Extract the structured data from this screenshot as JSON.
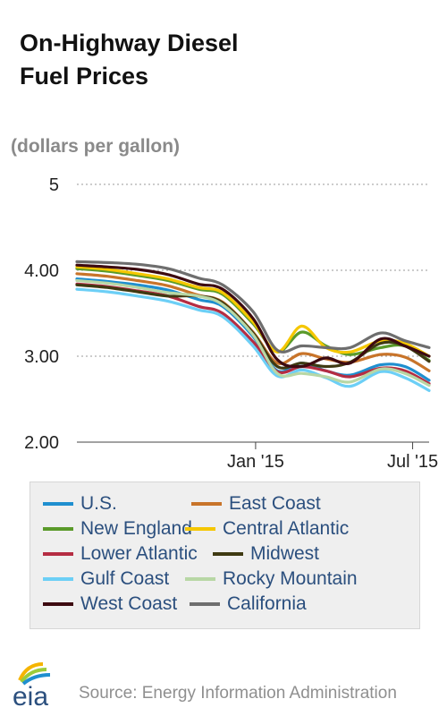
{
  "title_lines": [
    "On-Highway Diesel",
    "Fuel Prices"
  ],
  "source": "Source: Energy Information Administration",
  "logo_text": "eia",
  "chart_data": {
    "type": "line",
    "title": "On-Highway Diesel Fuel Prices",
    "ylabel": "(dollars per gallon)",
    "ylim": [
      2.0,
      5.0
    ],
    "yticks": [
      2.0,
      3.0,
      4.0,
      5.0
    ],
    "ytick_labels": [
      "2.00",
      "3.00",
      "4.00",
      "5"
    ],
    "x": [
      "2014-06-09",
      "2014-07-14",
      "2014-08-18",
      "2014-09-22",
      "2014-10-27",
      "2014-11-24",
      "2014-12-29",
      "2015-01-26",
      "2015-02-23",
      "2015-03-23",
      "2015-04-20",
      "2015-05-25",
      "2015-06-22",
      "2015-07-20"
    ],
    "xticks": [
      "2015-01-01",
      "2015-07-01"
    ],
    "xtick_labels": [
      "Jan '15",
      "Jul '15"
    ],
    "grid": "horizontal",
    "legend_position": "bottom",
    "series": [
      {
        "name": "U.S.",
        "color": "#1f8fcf",
        "values": [
          3.9,
          3.87,
          3.83,
          3.77,
          3.66,
          3.58,
          3.23,
          2.83,
          2.92,
          2.83,
          2.78,
          2.9,
          2.88,
          2.72
        ]
      },
      {
        "name": "East Coast",
        "color": "#c8742a",
        "values": [
          3.96,
          3.93,
          3.88,
          3.82,
          3.71,
          3.63,
          3.28,
          2.92,
          3.03,
          2.97,
          2.93,
          3.02,
          2.99,
          2.83
        ]
      },
      {
        "name": "New England",
        "color": "#5a9a2a",
        "values": [
          4.02,
          3.99,
          3.94,
          3.88,
          3.78,
          3.72,
          3.38,
          3.05,
          3.28,
          3.12,
          3.02,
          3.1,
          3.12,
          2.95
        ]
      },
      {
        "name": "Central Atlantic",
        "color": "#f5c700",
        "values": [
          4.04,
          4.01,
          3.96,
          3.9,
          3.8,
          3.74,
          3.4,
          3.05,
          3.35,
          3.1,
          3.05,
          3.18,
          3.15,
          3.0
        ]
      },
      {
        "name": "Lower Atlantic",
        "color": "#b52d43",
        "values": [
          3.84,
          3.81,
          3.76,
          3.7,
          3.58,
          3.5,
          3.17,
          2.82,
          2.88,
          2.83,
          2.76,
          2.86,
          2.83,
          2.68
        ]
      },
      {
        "name": "Midwest",
        "color": "#3f3a12",
        "values": [
          3.83,
          3.8,
          3.75,
          3.7,
          3.7,
          3.62,
          3.27,
          2.88,
          2.92,
          2.88,
          2.93,
          3.15,
          3.12,
          2.94
        ]
      },
      {
        "name": "Gulf Coast",
        "color": "#6ccff6",
        "values": [
          3.78,
          3.75,
          3.7,
          3.64,
          3.54,
          3.46,
          3.12,
          2.77,
          2.84,
          2.75,
          2.65,
          2.82,
          2.75,
          2.6
        ]
      },
      {
        "name": "Rocky Mountain",
        "color": "#b8d7a5",
        "values": [
          3.88,
          3.85,
          3.8,
          3.74,
          3.7,
          3.6,
          3.25,
          2.8,
          2.8,
          2.76,
          2.7,
          2.85,
          2.8,
          2.66
        ]
      },
      {
        "name": "West Coast",
        "color": "#3d0a10",
        "values": [
          4.06,
          4.04,
          4.01,
          3.95,
          3.84,
          3.78,
          3.44,
          2.96,
          2.88,
          2.98,
          2.92,
          3.2,
          3.12,
          3.0
        ]
      },
      {
        "name": "California",
        "color": "#6e6e6e",
        "values": [
          4.1,
          4.09,
          4.07,
          4.02,
          3.91,
          3.83,
          3.52,
          3.07,
          3.12,
          3.1,
          3.1,
          3.27,
          3.18,
          3.1
        ]
      }
    ]
  }
}
